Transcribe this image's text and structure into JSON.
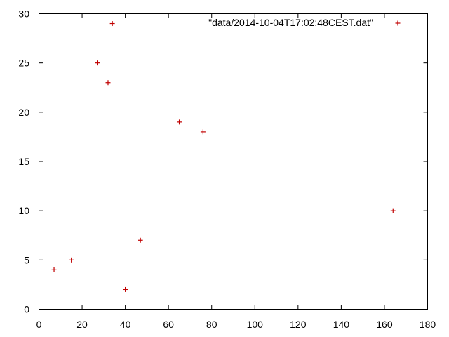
{
  "chart_data": {
    "type": "scatter",
    "title": "",
    "xlabel": "",
    "ylabel": "",
    "xlim": [
      0,
      180
    ],
    "ylim": [
      0,
      30
    ],
    "xticks": [
      0,
      20,
      40,
      60,
      80,
      100,
      120,
      140,
      160,
      180
    ],
    "yticks": [
      0,
      5,
      10,
      15,
      20,
      25,
      30
    ],
    "grid": false,
    "legend_position": "top-right",
    "series": [
      {
        "name": "\"data/2014-10-04T17:02:48CEST.dat\"",
        "color": "#c00000",
        "marker": "plus",
        "points": [
          {
            "x": 7,
            "y": 4
          },
          {
            "x": 15,
            "y": 5
          },
          {
            "x": 27,
            "y": 25
          },
          {
            "x": 32,
            "y": 23
          },
          {
            "x": 34,
            "y": 29
          },
          {
            "x": 40,
            "y": 2
          },
          {
            "x": 47,
            "y": 7
          },
          {
            "x": 65,
            "y": 19
          },
          {
            "x": 76,
            "y": 18
          },
          {
            "x": 164,
            "y": 10
          }
        ]
      }
    ]
  }
}
